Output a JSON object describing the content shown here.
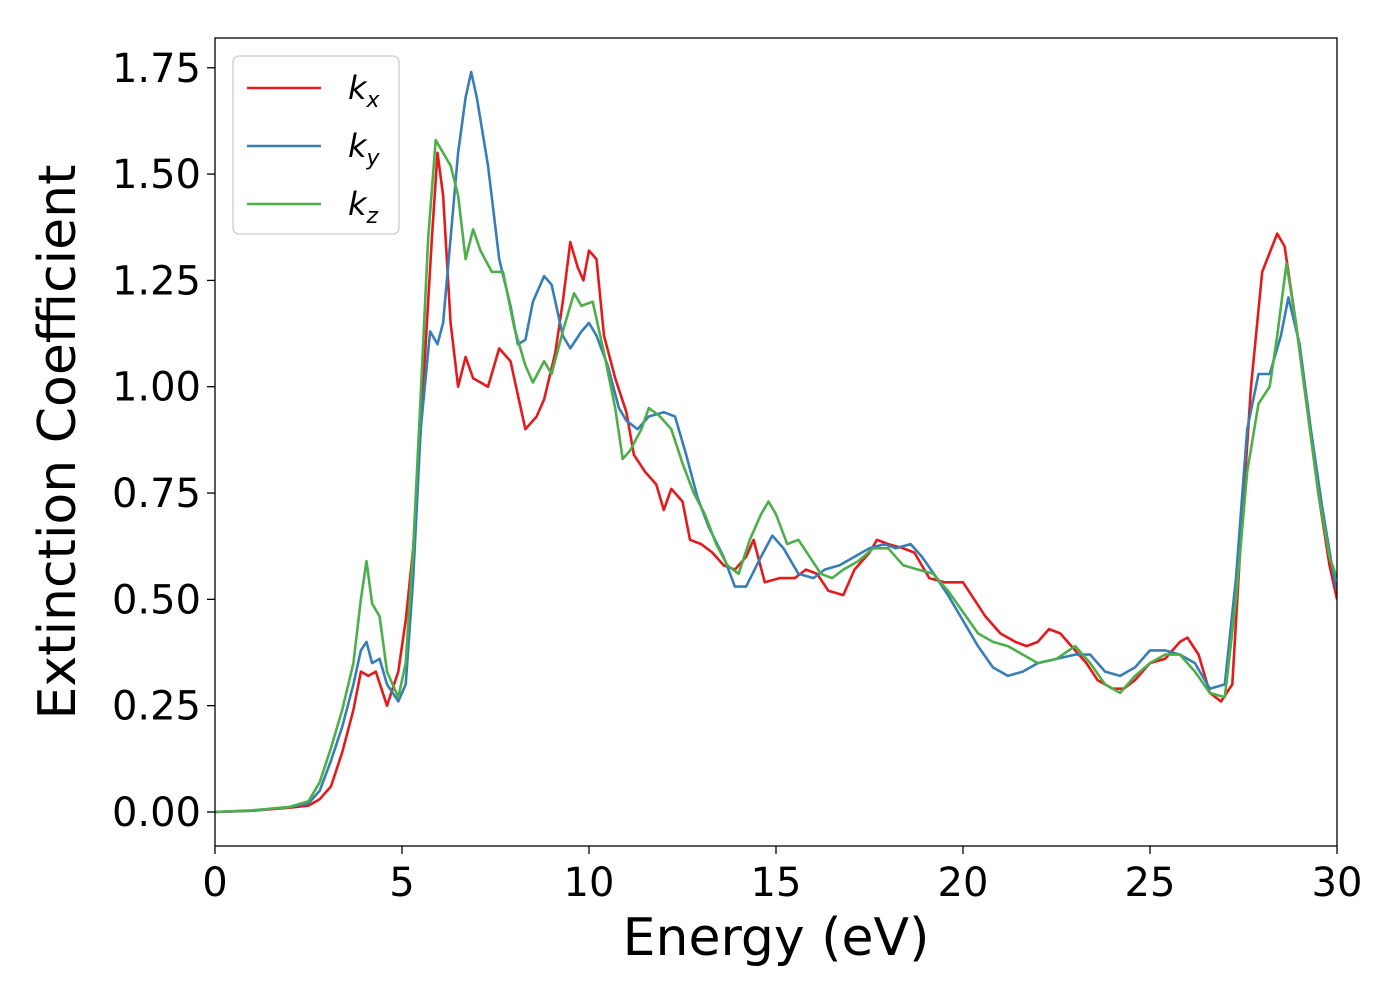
{
  "chart_data": {
    "type": "line",
    "xlabel": "Energy (eV)",
    "ylabel": "Extinction Coefficient",
    "xlim": [
      0,
      30
    ],
    "ylim": [
      -0.08,
      1.82
    ],
    "xticks": [
      "0",
      "5",
      "10",
      "15",
      "20",
      "25",
      "30"
    ],
    "yticks": [
      "0.00",
      "0.25",
      "0.50",
      "0.75",
      "1.00",
      "1.25",
      "1.50",
      "1.75"
    ],
    "grid": false,
    "legend_position": "top-left",
    "series": [
      {
        "name": "k",
        "subscript": "x",
        "color": "#e41a1c",
        "points": [
          [
            0,
            0
          ],
          [
            1,
            0.003
          ],
          [
            2,
            0.01
          ],
          [
            2.5,
            0.015
          ],
          [
            2.8,
            0.03
          ],
          [
            3.1,
            0.06
          ],
          [
            3.4,
            0.14
          ],
          [
            3.7,
            0.24
          ],
          [
            3.9,
            0.33
          ],
          [
            4.1,
            0.32
          ],
          [
            4.3,
            0.33
          ],
          [
            4.6,
            0.25
          ],
          [
            4.9,
            0.33
          ],
          [
            5.1,
            0.45
          ],
          [
            5.3,
            0.62
          ],
          [
            5.5,
            0.9
          ],
          [
            5.8,
            1.35
          ],
          [
            5.95,
            1.55
          ],
          [
            6.1,
            1.45
          ],
          [
            6.3,
            1.15
          ],
          [
            6.5,
            1.0
          ],
          [
            6.7,
            1.07
          ],
          [
            6.9,
            1.02
          ],
          [
            7.3,
            1.0
          ],
          [
            7.6,
            1.09
          ],
          [
            7.9,
            1.06
          ],
          [
            8.1,
            0.98
          ],
          [
            8.3,
            0.9
          ],
          [
            8.6,
            0.93
          ],
          [
            8.8,
            0.97
          ],
          [
            9.1,
            1.08
          ],
          [
            9.3,
            1.2
          ],
          [
            9.5,
            1.34
          ],
          [
            9.7,
            1.28
          ],
          [
            9.85,
            1.25
          ],
          [
            10.0,
            1.32
          ],
          [
            10.2,
            1.3
          ],
          [
            10.4,
            1.12
          ],
          [
            10.7,
            1.02
          ],
          [
            11.0,
            0.94
          ],
          [
            11.2,
            0.84
          ],
          [
            11.5,
            0.8
          ],
          [
            11.8,
            0.77
          ],
          [
            12.0,
            0.71
          ],
          [
            12.2,
            0.76
          ],
          [
            12.5,
            0.73
          ],
          [
            12.7,
            0.64
          ],
          [
            13.0,
            0.63
          ],
          [
            13.3,
            0.61
          ],
          [
            13.6,
            0.58
          ],
          [
            13.9,
            0.57
          ],
          [
            14.2,
            0.6
          ],
          [
            14.4,
            0.64
          ],
          [
            14.7,
            0.54
          ],
          [
            15.1,
            0.55
          ],
          [
            15.5,
            0.55
          ],
          [
            15.8,
            0.57
          ],
          [
            16.1,
            0.56
          ],
          [
            16.4,
            0.52
          ],
          [
            16.8,
            0.51
          ],
          [
            17.1,
            0.57
          ],
          [
            17.5,
            0.61
          ],
          [
            17.7,
            0.64
          ],
          [
            18.0,
            0.63
          ],
          [
            18.4,
            0.62
          ],
          [
            18.7,
            0.61
          ],
          [
            19.1,
            0.55
          ],
          [
            19.5,
            0.54
          ],
          [
            20.0,
            0.54
          ],
          [
            20.3,
            0.5
          ],
          [
            20.6,
            0.46
          ],
          [
            21.0,
            0.42
          ],
          [
            21.4,
            0.4
          ],
          [
            21.7,
            0.39
          ],
          [
            22.0,
            0.4
          ],
          [
            22.3,
            0.43
          ],
          [
            22.6,
            0.42
          ],
          [
            23.0,
            0.38
          ],
          [
            23.3,
            0.35
          ],
          [
            23.6,
            0.31
          ],
          [
            24.0,
            0.29
          ],
          [
            24.3,
            0.29
          ],
          [
            24.6,
            0.31
          ],
          [
            25.0,
            0.35
          ],
          [
            25.4,
            0.36
          ],
          [
            25.8,
            0.4
          ],
          [
            26.0,
            0.41
          ],
          [
            26.3,
            0.37
          ],
          [
            26.6,
            0.28
          ],
          [
            26.9,
            0.26
          ],
          [
            27.2,
            0.3
          ],
          [
            27.4,
            0.6
          ],
          [
            27.7,
            1.0
          ],
          [
            28.0,
            1.27
          ],
          [
            28.4,
            1.36
          ],
          [
            28.6,
            1.33
          ],
          [
            28.9,
            1.15
          ],
          [
            29.2,
            0.95
          ],
          [
            29.5,
            0.75
          ],
          [
            29.8,
            0.58
          ],
          [
            30,
            0.5
          ]
        ]
      },
      {
        "name": "k",
        "subscript": "y",
        "color": "#377eb8",
        "points": [
          [
            0,
            0
          ],
          [
            1,
            0.003
          ],
          [
            2,
            0.012
          ],
          [
            2.5,
            0.02
          ],
          [
            2.8,
            0.05
          ],
          [
            3.1,
            0.12
          ],
          [
            3.4,
            0.2
          ],
          [
            3.7,
            0.3
          ],
          [
            3.9,
            0.38
          ],
          [
            4.05,
            0.4
          ],
          [
            4.2,
            0.35
          ],
          [
            4.4,
            0.36
          ],
          [
            4.6,
            0.3
          ],
          [
            4.9,
            0.26
          ],
          [
            5.1,
            0.3
          ],
          [
            5.3,
            0.55
          ],
          [
            5.5,
            0.9
          ],
          [
            5.75,
            1.13
          ],
          [
            5.95,
            1.1
          ],
          [
            6.1,
            1.15
          ],
          [
            6.3,
            1.35
          ],
          [
            6.5,
            1.55
          ],
          [
            6.7,
            1.68
          ],
          [
            6.85,
            1.74
          ],
          [
            7.0,
            1.68
          ],
          [
            7.3,
            1.52
          ],
          [
            7.6,
            1.3
          ],
          [
            7.9,
            1.19
          ],
          [
            8.1,
            1.1
          ],
          [
            8.3,
            1.11
          ],
          [
            8.5,
            1.2
          ],
          [
            8.8,
            1.26
          ],
          [
            9.0,
            1.24
          ],
          [
            9.3,
            1.12
          ],
          [
            9.5,
            1.09
          ],
          [
            9.8,
            1.13
          ],
          [
            10.0,
            1.15
          ],
          [
            10.2,
            1.12
          ],
          [
            10.5,
            1.05
          ],
          [
            10.8,
            0.95
          ],
          [
            11.0,
            0.92
          ],
          [
            11.3,
            0.9
          ],
          [
            11.6,
            0.93
          ],
          [
            12.0,
            0.94
          ],
          [
            12.3,
            0.93
          ],
          [
            12.6,
            0.84
          ],
          [
            12.9,
            0.74
          ],
          [
            13.2,
            0.67
          ],
          [
            13.6,
            0.6
          ],
          [
            13.9,
            0.53
          ],
          [
            14.2,
            0.53
          ],
          [
            14.6,
            0.6
          ],
          [
            14.9,
            0.65
          ],
          [
            15.2,
            0.62
          ],
          [
            15.6,
            0.56
          ],
          [
            16.0,
            0.55
          ],
          [
            16.3,
            0.57
          ],
          [
            16.7,
            0.58
          ],
          [
            17.1,
            0.6
          ],
          [
            17.5,
            0.62
          ],
          [
            17.9,
            0.63
          ],
          [
            18.2,
            0.62
          ],
          [
            18.6,
            0.63
          ],
          [
            18.9,
            0.6
          ],
          [
            19.3,
            0.55
          ],
          [
            19.6,
            0.51
          ],
          [
            20.0,
            0.45
          ],
          [
            20.4,
            0.39
          ],
          [
            20.8,
            0.34
          ],
          [
            21.2,
            0.32
          ],
          [
            21.6,
            0.33
          ],
          [
            22.0,
            0.35
          ],
          [
            22.5,
            0.36
          ],
          [
            23.0,
            0.37
          ],
          [
            23.4,
            0.37
          ],
          [
            23.8,
            0.33
          ],
          [
            24.2,
            0.32
          ],
          [
            24.6,
            0.34
          ],
          [
            25.0,
            0.38
          ],
          [
            25.4,
            0.38
          ],
          [
            25.8,
            0.37
          ],
          [
            26.2,
            0.35
          ],
          [
            26.6,
            0.29
          ],
          [
            27.0,
            0.3
          ],
          [
            27.3,
            0.55
          ],
          [
            27.6,
            0.9
          ],
          [
            27.9,
            1.03
          ],
          [
            28.2,
            1.03
          ],
          [
            28.5,
            1.12
          ],
          [
            28.7,
            1.21
          ],
          [
            29.0,
            1.1
          ],
          [
            29.3,
            0.9
          ],
          [
            29.6,
            0.72
          ],
          [
            29.9,
            0.56
          ],
          [
            30,
            0.52
          ]
        ]
      },
      {
        "name": "k",
        "subscript": "z",
        "color": "#4daf4a",
        "points": [
          [
            0,
            0
          ],
          [
            1,
            0.004
          ],
          [
            2,
            0.012
          ],
          [
            2.5,
            0.025
          ],
          [
            2.8,
            0.07
          ],
          [
            3.1,
            0.15
          ],
          [
            3.4,
            0.24
          ],
          [
            3.7,
            0.35
          ],
          [
            3.9,
            0.5
          ],
          [
            4.05,
            0.59
          ],
          [
            4.2,
            0.49
          ],
          [
            4.4,
            0.46
          ],
          [
            4.6,
            0.33
          ],
          [
            4.9,
            0.27
          ],
          [
            5.1,
            0.35
          ],
          [
            5.3,
            0.62
          ],
          [
            5.5,
            0.98
          ],
          [
            5.7,
            1.35
          ],
          [
            5.9,
            1.58
          ],
          [
            6.1,
            1.55
          ],
          [
            6.3,
            1.52
          ],
          [
            6.5,
            1.45
          ],
          [
            6.7,
            1.3
          ],
          [
            6.9,
            1.37
          ],
          [
            7.1,
            1.32
          ],
          [
            7.4,
            1.27
          ],
          [
            7.7,
            1.27
          ],
          [
            8.0,
            1.14
          ],
          [
            8.3,
            1.05
          ],
          [
            8.5,
            1.01
          ],
          [
            8.8,
            1.06
          ],
          [
            9.0,
            1.03
          ],
          [
            9.3,
            1.13
          ],
          [
            9.6,
            1.22
          ],
          [
            9.8,
            1.19
          ],
          [
            10.1,
            1.2
          ],
          [
            10.4,
            1.08
          ],
          [
            10.7,
            0.95
          ],
          [
            10.9,
            0.83
          ],
          [
            11.1,
            0.85
          ],
          [
            11.4,
            0.9
          ],
          [
            11.6,
            0.95
          ],
          [
            11.9,
            0.93
          ],
          [
            12.2,
            0.9
          ],
          [
            12.5,
            0.82
          ],
          [
            12.8,
            0.75
          ],
          [
            13.1,
            0.7
          ],
          [
            13.4,
            0.63
          ],
          [
            13.7,
            0.58
          ],
          [
            14.0,
            0.56
          ],
          [
            14.3,
            0.64
          ],
          [
            14.6,
            0.7
          ],
          [
            14.8,
            0.73
          ],
          [
            15.0,
            0.7
          ],
          [
            15.3,
            0.63
          ],
          [
            15.6,
            0.64
          ],
          [
            15.9,
            0.6
          ],
          [
            16.2,
            0.56
          ],
          [
            16.5,
            0.55
          ],
          [
            16.8,
            0.57
          ],
          [
            17.2,
            0.59
          ],
          [
            17.6,
            0.62
          ],
          [
            18.0,
            0.62
          ],
          [
            18.4,
            0.58
          ],
          [
            18.8,
            0.57
          ],
          [
            19.2,
            0.56
          ],
          [
            19.6,
            0.52
          ],
          [
            20.0,
            0.47
          ],
          [
            20.4,
            0.42
          ],
          [
            20.8,
            0.4
          ],
          [
            21.2,
            0.39
          ],
          [
            21.6,
            0.37
          ],
          [
            22.0,
            0.35
          ],
          [
            22.5,
            0.36
          ],
          [
            23.0,
            0.39
          ],
          [
            23.4,
            0.35
          ],
          [
            23.8,
            0.3
          ],
          [
            24.2,
            0.28
          ],
          [
            24.6,
            0.32
          ],
          [
            25.0,
            0.35
          ],
          [
            25.4,
            0.37
          ],
          [
            25.8,
            0.37
          ],
          [
            26.2,
            0.33
          ],
          [
            26.6,
            0.28
          ],
          [
            27.0,
            0.27
          ],
          [
            27.3,
            0.5
          ],
          [
            27.6,
            0.8
          ],
          [
            27.9,
            0.96
          ],
          [
            28.2,
            1.0
          ],
          [
            28.4,
            1.12
          ],
          [
            28.65,
            1.29
          ],
          [
            28.9,
            1.15
          ],
          [
            29.2,
            0.95
          ],
          [
            29.5,
            0.75
          ],
          [
            29.8,
            0.6
          ],
          [
            30,
            0.55
          ]
        ]
      }
    ]
  }
}
